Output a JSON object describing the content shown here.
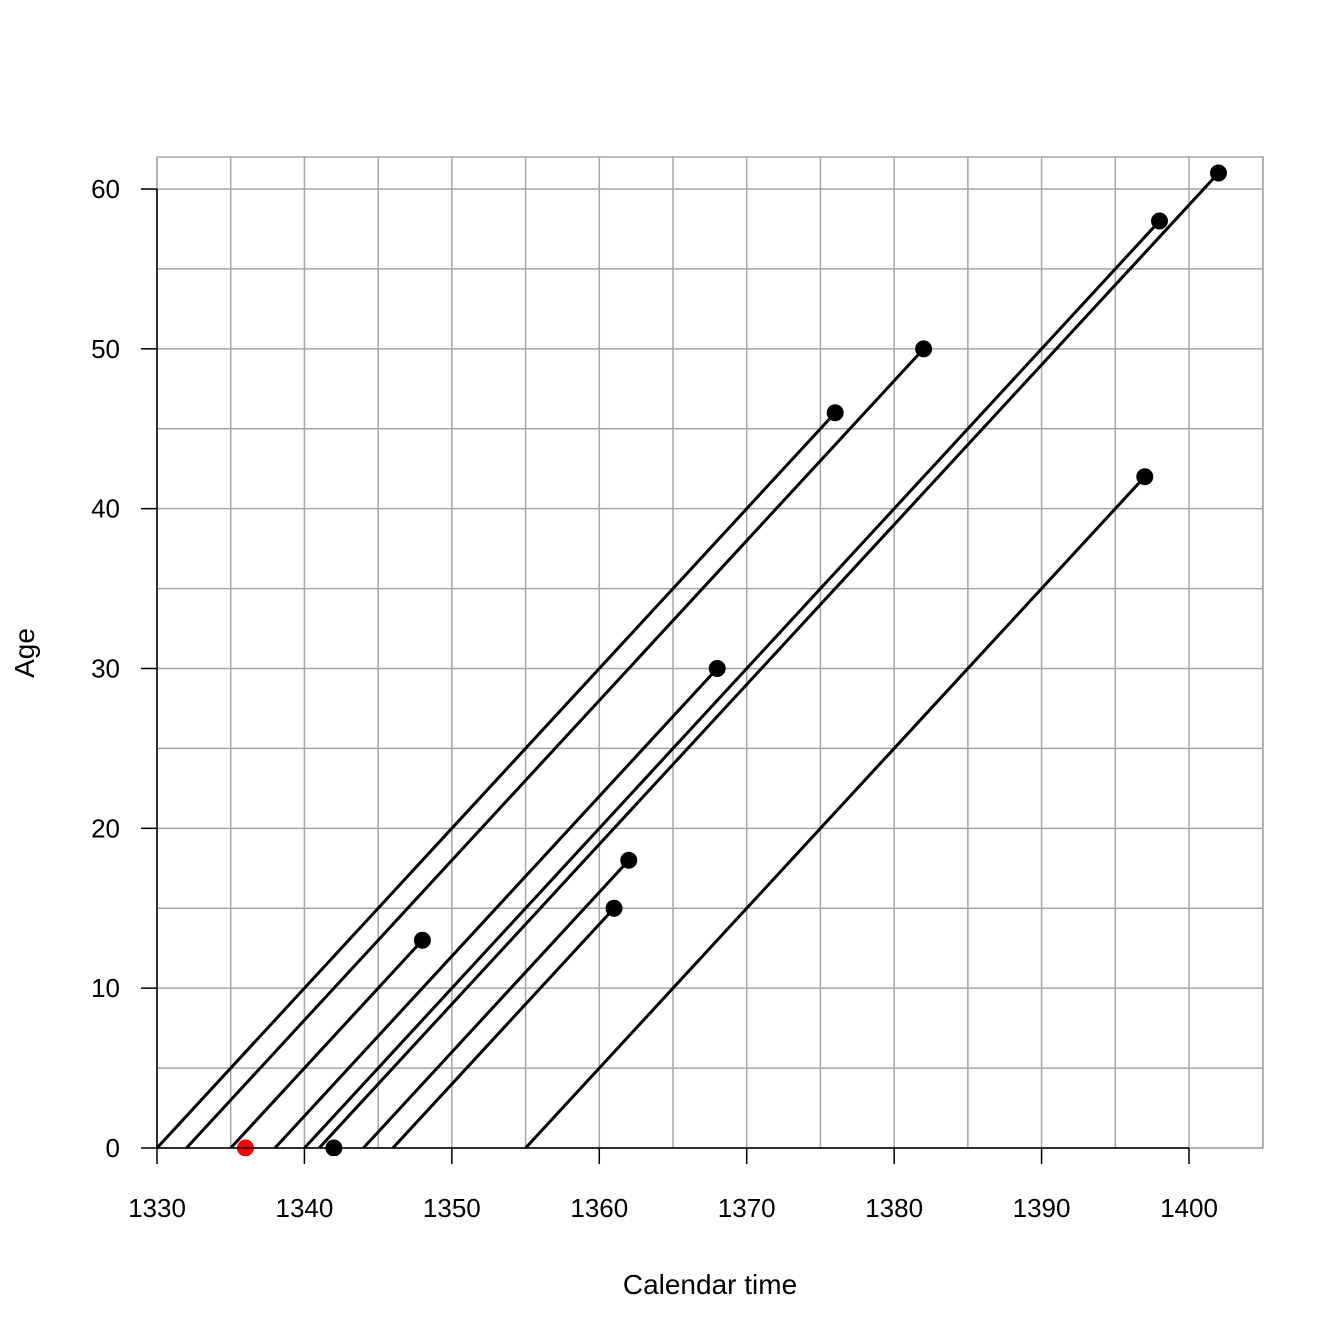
{
  "chart_data": {
    "type": "line",
    "xlabel": "Calendar time",
    "ylabel": "Age",
    "xlim": [
      1330,
      1405
    ],
    "ylim": [
      -2,
      62
    ],
    "x_ticks": [
      1330,
      1340,
      1350,
      1360,
      1370,
      1380,
      1390,
      1400
    ],
    "y_ticks": [
      0,
      10,
      20,
      30,
      40,
      50,
      60
    ],
    "grid": true,
    "grid_x_step": 5,
    "grid_y_step": 5,
    "colors": {
      "line": "#000000",
      "grid": "#a6a6a6",
      "highlight": "#ff0000"
    },
    "lifelines": [
      {
        "x": [
          1330,
          1376
        ],
        "y": [
          0,
          46
        ]
      },
      {
        "x": [
          1332,
          1382
        ],
        "y": [
          0,
          50
        ]
      },
      {
        "x": [
          1335,
          1348
        ],
        "y": [
          0,
          13
        ]
      },
      {
        "x": [
          1338,
          1368
        ],
        "y": [
          0,
          30
        ]
      },
      {
        "x": [
          1340,
          1398
        ],
        "y": [
          0,
          58
        ]
      },
      {
        "x": [
          1341,
          1402
        ],
        "y": [
          0,
          61
        ]
      },
      {
        "x": [
          1344,
          1362
        ],
        "y": [
          0,
          18
        ]
      },
      {
        "x": [
          1346,
          1361
        ],
        "y": [
          0,
          15
        ]
      },
      {
        "x": [
          1355,
          1397
        ],
        "y": [
          0,
          42
        ]
      }
    ],
    "points": [
      {
        "x": 1376,
        "y": 46
      },
      {
        "x": 1382,
        "y": 50
      },
      {
        "x": 1348,
        "y": 13
      },
      {
        "x": 1368,
        "y": 30
      },
      {
        "x": 1398,
        "y": 58
      },
      {
        "x": 1402,
        "y": 61
      },
      {
        "x": 1362,
        "y": 18
      },
      {
        "x": 1361,
        "y": 15
      },
      {
        "x": 1397,
        "y": 42
      },
      {
        "x": 1342,
        "y": 0
      },
      {
        "x": 1336,
        "y": 0,
        "highlight": true
      }
    ]
  }
}
